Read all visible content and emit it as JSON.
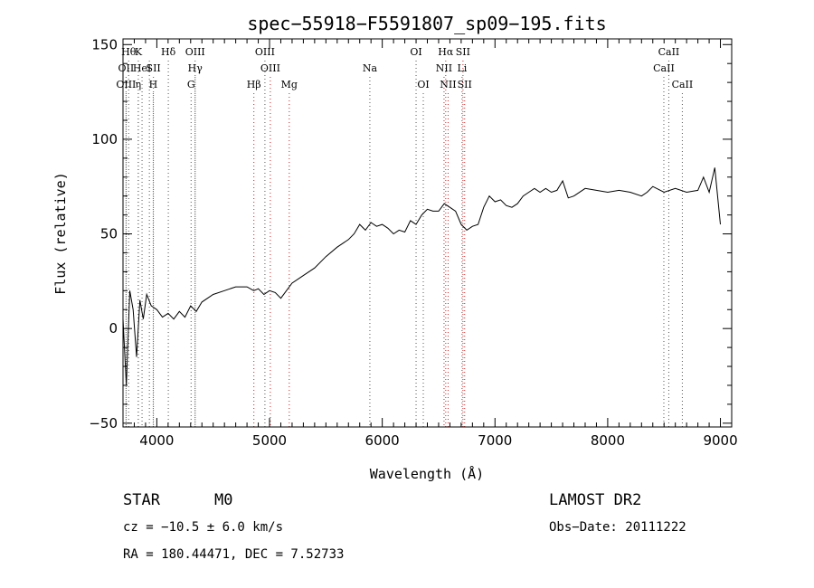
{
  "title": "spec−55918−F5591807_sp09−195.fits",
  "info": {
    "class": "STAR",
    "subclass": "M0",
    "survey": "LAMOST DR2",
    "cz": "cz = −10.5 ± 6.0 km/s",
    "obs_date": "Obs−Date: 20111222",
    "radec": "RA = 180.44471, DEC =    7.52733"
  },
  "chart_data": {
    "type": "line",
    "title": "spec−55918−F5591807_sp09−195.fits",
    "xlabel": "Wavelength (Å)",
    "ylabel": "Flux (relative)",
    "xlim": [
      3700,
      9100
    ],
    "ylim": [
      -52,
      153
    ],
    "xticks": [
      4000,
      5000,
      6000,
      7000,
      8000,
      9000
    ],
    "yticks": [
      -50,
      0,
      50,
      100,
      150
    ],
    "ytick_labels": [
      "−50",
      "0",
      "50",
      "100",
      "150"
    ],
    "grid": false,
    "series": [
      {
        "x": [
          3700,
          3730,
          3760,
          3790,
          3820,
          3850,
          3880,
          3910,
          3950,
          4000,
          4050,
          4100,
          4150,
          4200,
          4250,
          4300,
          4350,
          4400,
          4500,
          4600,
          4700,
          4800,
          4860,
          4900,
          4950,
          5000,
          5050,
          5100,
          5150,
          5200,
          5300,
          5400,
          5500,
          5600,
          5700,
          5750,
          5800,
          5850,
          5900,
          5950,
          6000,
          6050,
          6100,
          6150,
          6200,
          6250,
          6300,
          6350,
          6400,
          6450,
          6500,
          6550,
          6600,
          6650,
          6700,
          6750,
          6800,
          6850,
          6900,
          6950,
          7000,
          7050,
          7100,
          7150,
          7200,
          7250,
          7300,
          7350,
          7400,
          7450,
          7500,
          7550,
          7600,
          7650,
          7700,
          7800,
          7900,
          8000,
          8100,
          8200,
          8300,
          8350,
          8400,
          8500,
          8600,
          8700,
          8800,
          8850,
          8900,
          8950,
          9000
        ],
        "y": [
          5,
          -30,
          20,
          10,
          -15,
          15,
          5,
          18,
          12,
          10,
          6,
          8,
          5,
          9,
          6,
          12,
          9,
          14,
          18,
          20,
          22,
          22,
          20,
          21,
          18,
          20,
          19,
          16,
          20,
          24,
          28,
          32,
          38,
          43,
          47,
          50,
          55,
          52,
          56,
          54,
          55,
          53,
          50,
          52,
          51,
          57,
          55,
          60,
          63,
          62,
          62,
          66,
          64,
          62,
          55,
          52,
          54,
          55,
          64,
          70,
          67,
          68,
          65,
          64,
          66,
          70,
          72,
          74,
          72,
          74,
          72,
          73,
          78,
          69,
          70,
          74,
          73,
          72,
          73,
          72,
          70,
          72,
          75,
          72,
          74,
          72,
          73,
          80,
          72,
          85,
          55
        ]
      }
    ],
    "lines": [
      {
        "wl": 3750,
        "label": "Hθ",
        "row": 0,
        "color": "#555555"
      },
      {
        "wl": 3836,
        "label": "K",
        "row": 0,
        "color": "#555555"
      },
      {
        "wl": 3934,
        "label": "",
        "row": 0,
        "color": "#555555"
      },
      {
        "wl": 4102,
        "label": "Hδ",
        "row": 0,
        "color": "#555555"
      },
      {
        "wl": 4340,
        "label": "OIII",
        "row": 0,
        "color": "#555555"
      },
      {
        "wl": 4959,
        "label": "OIII",
        "row": 0,
        "color": "#555555"
      },
      {
        "wl": 6300,
        "label": "OI",
        "row": 0,
        "color": "#555555"
      },
      {
        "wl": 6563,
        "label": "Hα",
        "row": 0,
        "color": "#cc2222"
      },
      {
        "wl": 6716,
        "label": "SII",
        "row": 0,
        "color": "#cc2222"
      },
      {
        "wl": 8542,
        "label": "CaII",
        "row": 0,
        "color": "#555555"
      },
      {
        "wl": 3727,
        "label": "OII",
        "row": 1,
        "color": "#555555"
      },
      {
        "wl": 3869,
        "label": "HeI",
        "row": 1,
        "color": "#555555"
      },
      {
        "wl": 3970,
        "label": "SII",
        "row": 1,
        "color": "#555555"
      },
      {
        "wl": 4340,
        "label": "Hγ",
        "row": 1,
        "color": "#555555"
      },
      {
        "wl": 5007,
        "label": "OIII",
        "row": 1,
        "color": "#cc2222"
      },
      {
        "wl": 5890,
        "label": "Na",
        "row": 1,
        "color": "#555555"
      },
      {
        "wl": 6548,
        "label": "NII",
        "row": 1,
        "color": "#cc2222"
      },
      {
        "wl": 6708,
        "label": "Li",
        "row": 1,
        "color": "#555555"
      },
      {
        "wl": 8498,
        "label": "CaII",
        "row": 1,
        "color": "#555555"
      },
      {
        "wl": 3727,
        "label": "OIII",
        "row": 2,
        "color": "#555555"
      },
      {
        "wl": 3835,
        "label": "η",
        "row": 2,
        "color": "#555555"
      },
      {
        "wl": 3968,
        "label": "H",
        "row": 2,
        "color": "#555555"
      },
      {
        "wl": 4304,
        "label": "G",
        "row": 2,
        "color": "#555555"
      },
      {
        "wl": 4861,
        "label": "Hβ",
        "row": 2,
        "color": "#cc2222"
      },
      {
        "wl": 5175,
        "label": "Mg",
        "row": 2,
        "color": "#cc2222"
      },
      {
        "wl": 6364,
        "label": "OI",
        "row": 2,
        "color": "#555555"
      },
      {
        "wl": 6584,
        "label": "NII",
        "row": 2,
        "color": "#cc2222"
      },
      {
        "wl": 6731,
        "label": "SII",
        "row": 2,
        "color": "#cc2222"
      },
      {
        "wl": 8662,
        "label": "CaII",
        "row": 2,
        "color": "#555555"
      }
    ]
  }
}
